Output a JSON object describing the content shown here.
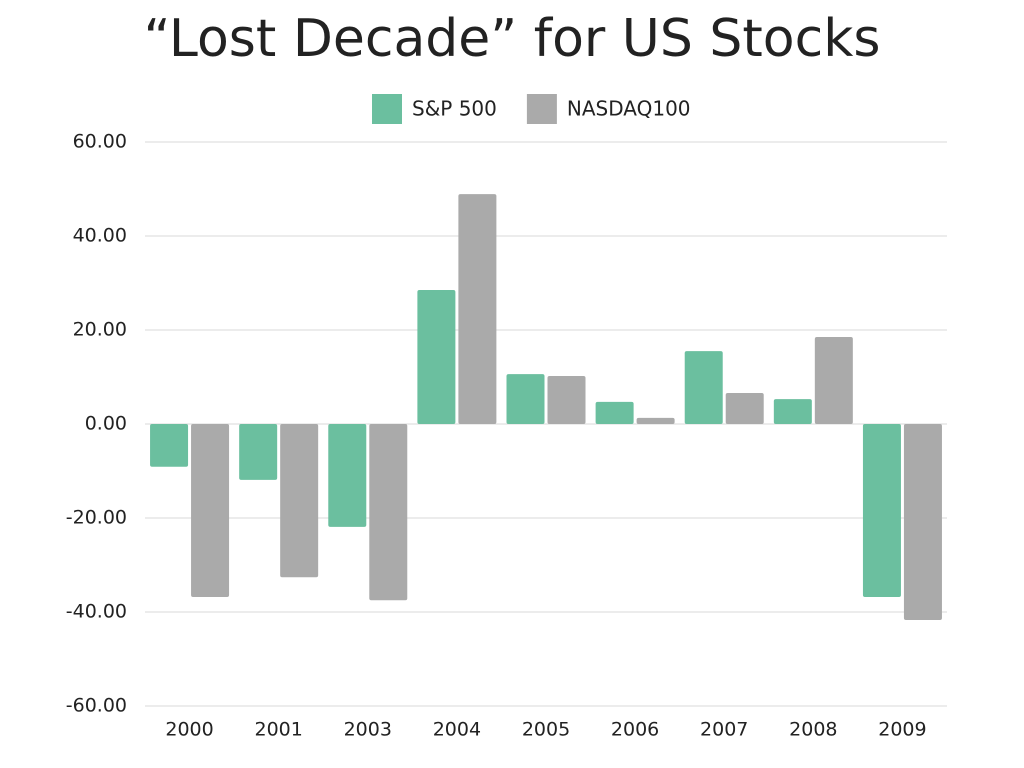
{
  "chart_data": {
    "type": "bar",
    "title": "“Lost Decade” for US Stocks",
    "categories": [
      "2000",
      "2001",
      "2003",
      "2004",
      "2005",
      "2006",
      "2007",
      "2008",
      "2009"
    ],
    "series": [
      {
        "name": "S&P 500",
        "color": "#6bbf9f",
        "values": [
          -9.1,
          -11.9,
          -21.9,
          28.5,
          10.6,
          4.7,
          15.5,
          5.3,
          -36.8
        ]
      },
      {
        "name": "NASDAQ100",
        "color": "#aaaaaa",
        "values": [
          -36.8,
          -32.6,
          -37.5,
          48.9,
          10.2,
          1.3,
          6.6,
          18.5,
          -41.7
        ]
      }
    ],
    "ylim": [
      -60,
      60
    ],
    "yticks": [
      {
        "value": -60,
        "label": "-60.00"
      },
      {
        "value": -40,
        "label": "-40.00"
      },
      {
        "value": -20,
        "label": "-20.00"
      },
      {
        "value": 0,
        "label": "0.00"
      },
      {
        "value": 20,
        "label": "20.00"
      },
      {
        "value": 40,
        "label": "40.00"
      },
      {
        "value": 60,
        "label": "60.00"
      }
    ],
    "grid": true,
    "legend": "top"
  }
}
